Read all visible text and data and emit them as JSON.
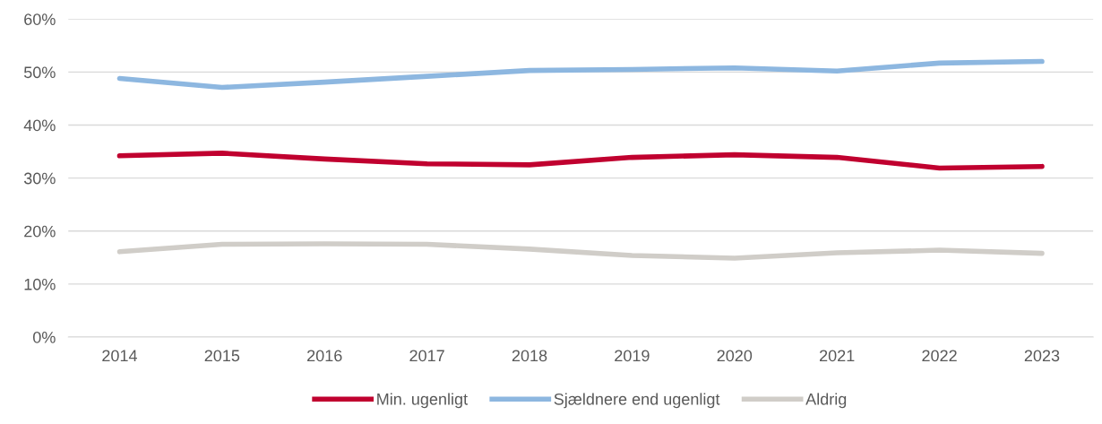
{
  "chart_data": {
    "type": "line",
    "categories": [
      "2014",
      "2015",
      "2016",
      "2017",
      "2018",
      "2019",
      "2020",
      "2021",
      "2022",
      "2023"
    ],
    "series": [
      {
        "name": "Min. ugenligt",
        "color": "#c0002f",
        "values": [
          34.2,
          34.7,
          33.6,
          32.7,
          32.5,
          33.9,
          34.4,
          33.9,
          31.9,
          32.2
        ]
      },
      {
        "name": "Sjældnere end ugenligt",
        "color": "#8db7e0",
        "values": [
          48.8,
          47.1,
          48.1,
          49.2,
          50.3,
          50.5,
          50.8,
          50.2,
          51.7,
          52.0
        ]
      },
      {
        "name": "Aldrig",
        "color": "#d0cdc8",
        "values": [
          16.1,
          17.5,
          17.6,
          17.5,
          16.6,
          15.4,
          14.9,
          15.9,
          16.4,
          15.8
        ]
      }
    ],
    "ylim": [
      0,
      60
    ],
    "yticks": [
      {
        "value": 0,
        "label": "0%"
      },
      {
        "value": 10,
        "label": "10%"
      },
      {
        "value": 20,
        "label": "20%"
      },
      {
        "value": 30,
        "label": "30%"
      },
      {
        "value": 40,
        "label": "40%"
      },
      {
        "value": 50,
        "label": "50%"
      },
      {
        "value": 60,
        "label": "60%"
      }
    ],
    "grid": "y",
    "legend": "bottom",
    "marker": "none",
    "line_style": "solid"
  }
}
